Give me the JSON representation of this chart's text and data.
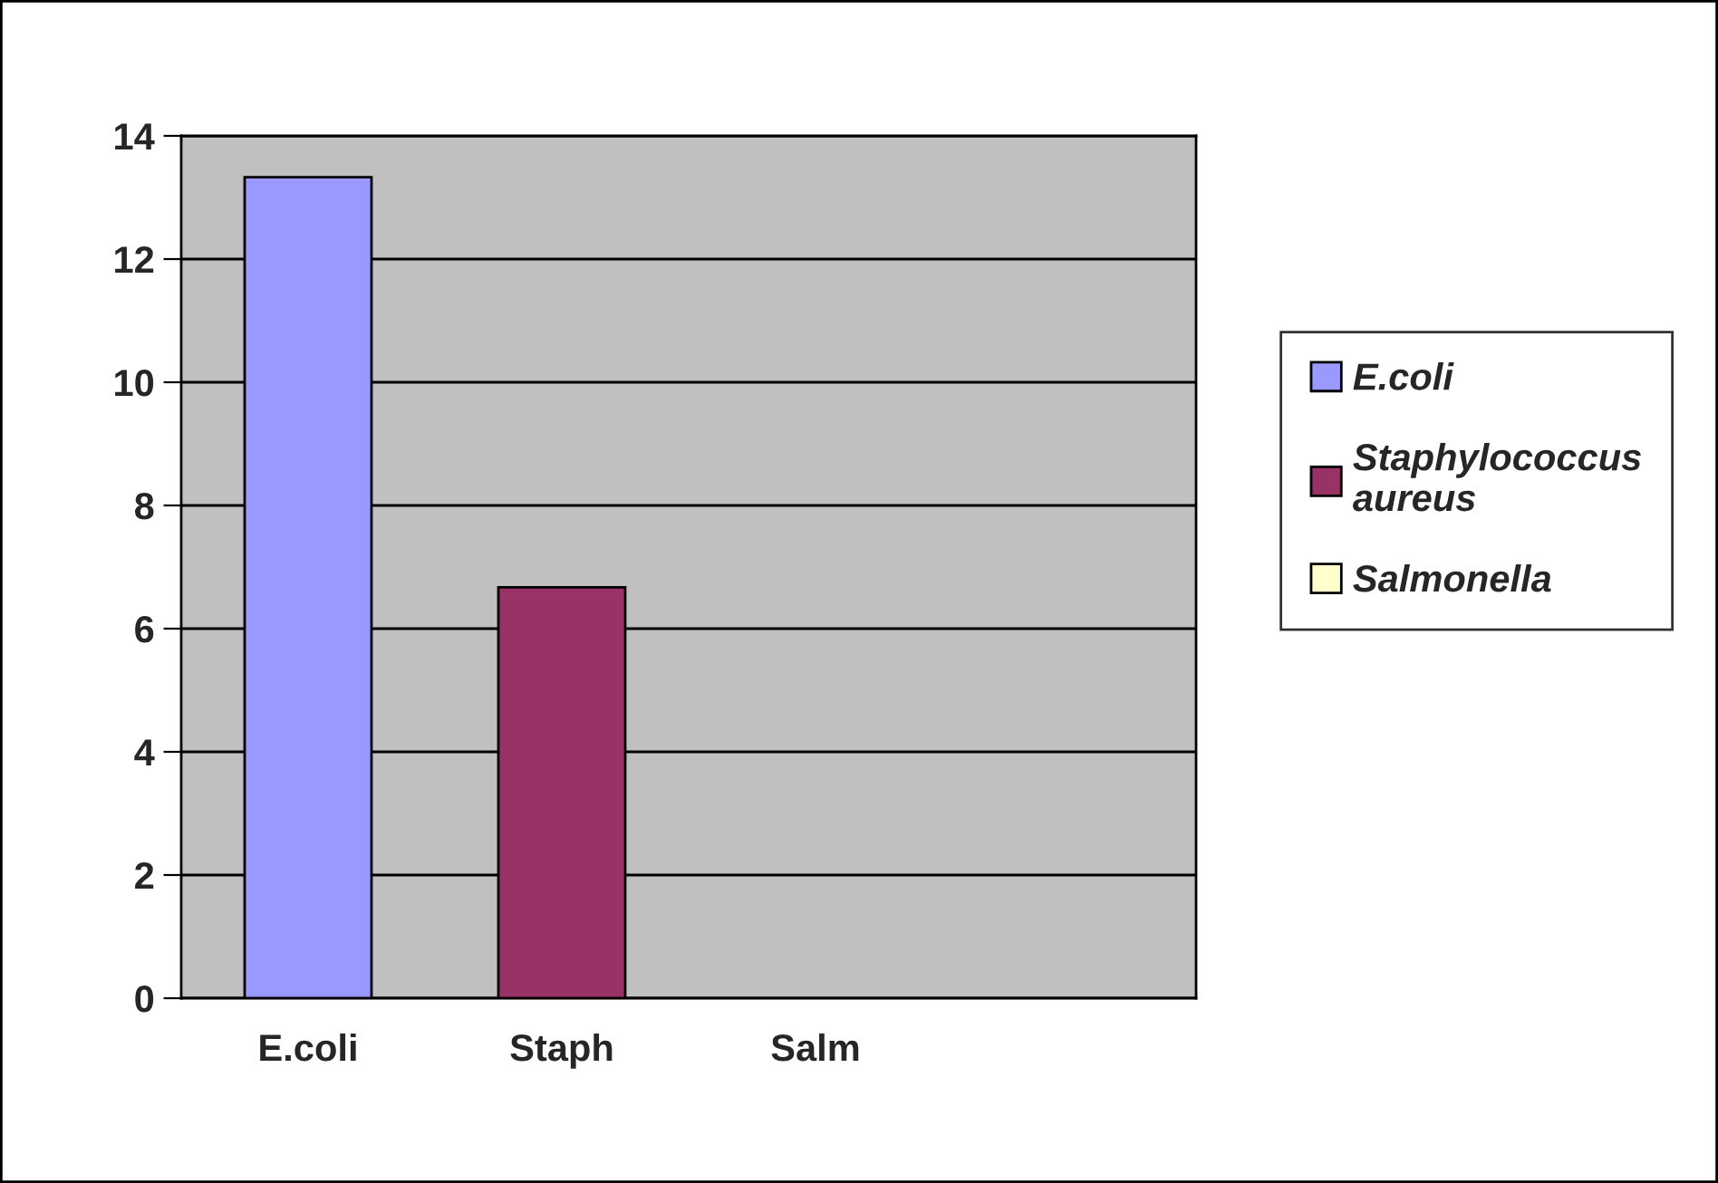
{
  "chart_data": {
    "type": "bar",
    "categories": [
      "E.coli",
      "Staph",
      "Salm",
      null
    ],
    "series": [
      {
        "name": "E.coli",
        "color": "#9999ff",
        "values": [
          13.33,
          null,
          null,
          null
        ]
      },
      {
        "name": "Staphylococcus aureus",
        "color": "#993366",
        "values": [
          null,
          6.67,
          null,
          null
        ]
      },
      {
        "name": "Salmonella",
        "color": "#ffffcc",
        "values": [
          null,
          null,
          0,
          null
        ]
      }
    ],
    "ylim": [
      0,
      14
    ],
    "yticks": [
      0,
      2,
      4,
      6,
      8,
      10,
      12,
      14
    ],
    "grid": "y",
    "legend": "right"
  }
}
